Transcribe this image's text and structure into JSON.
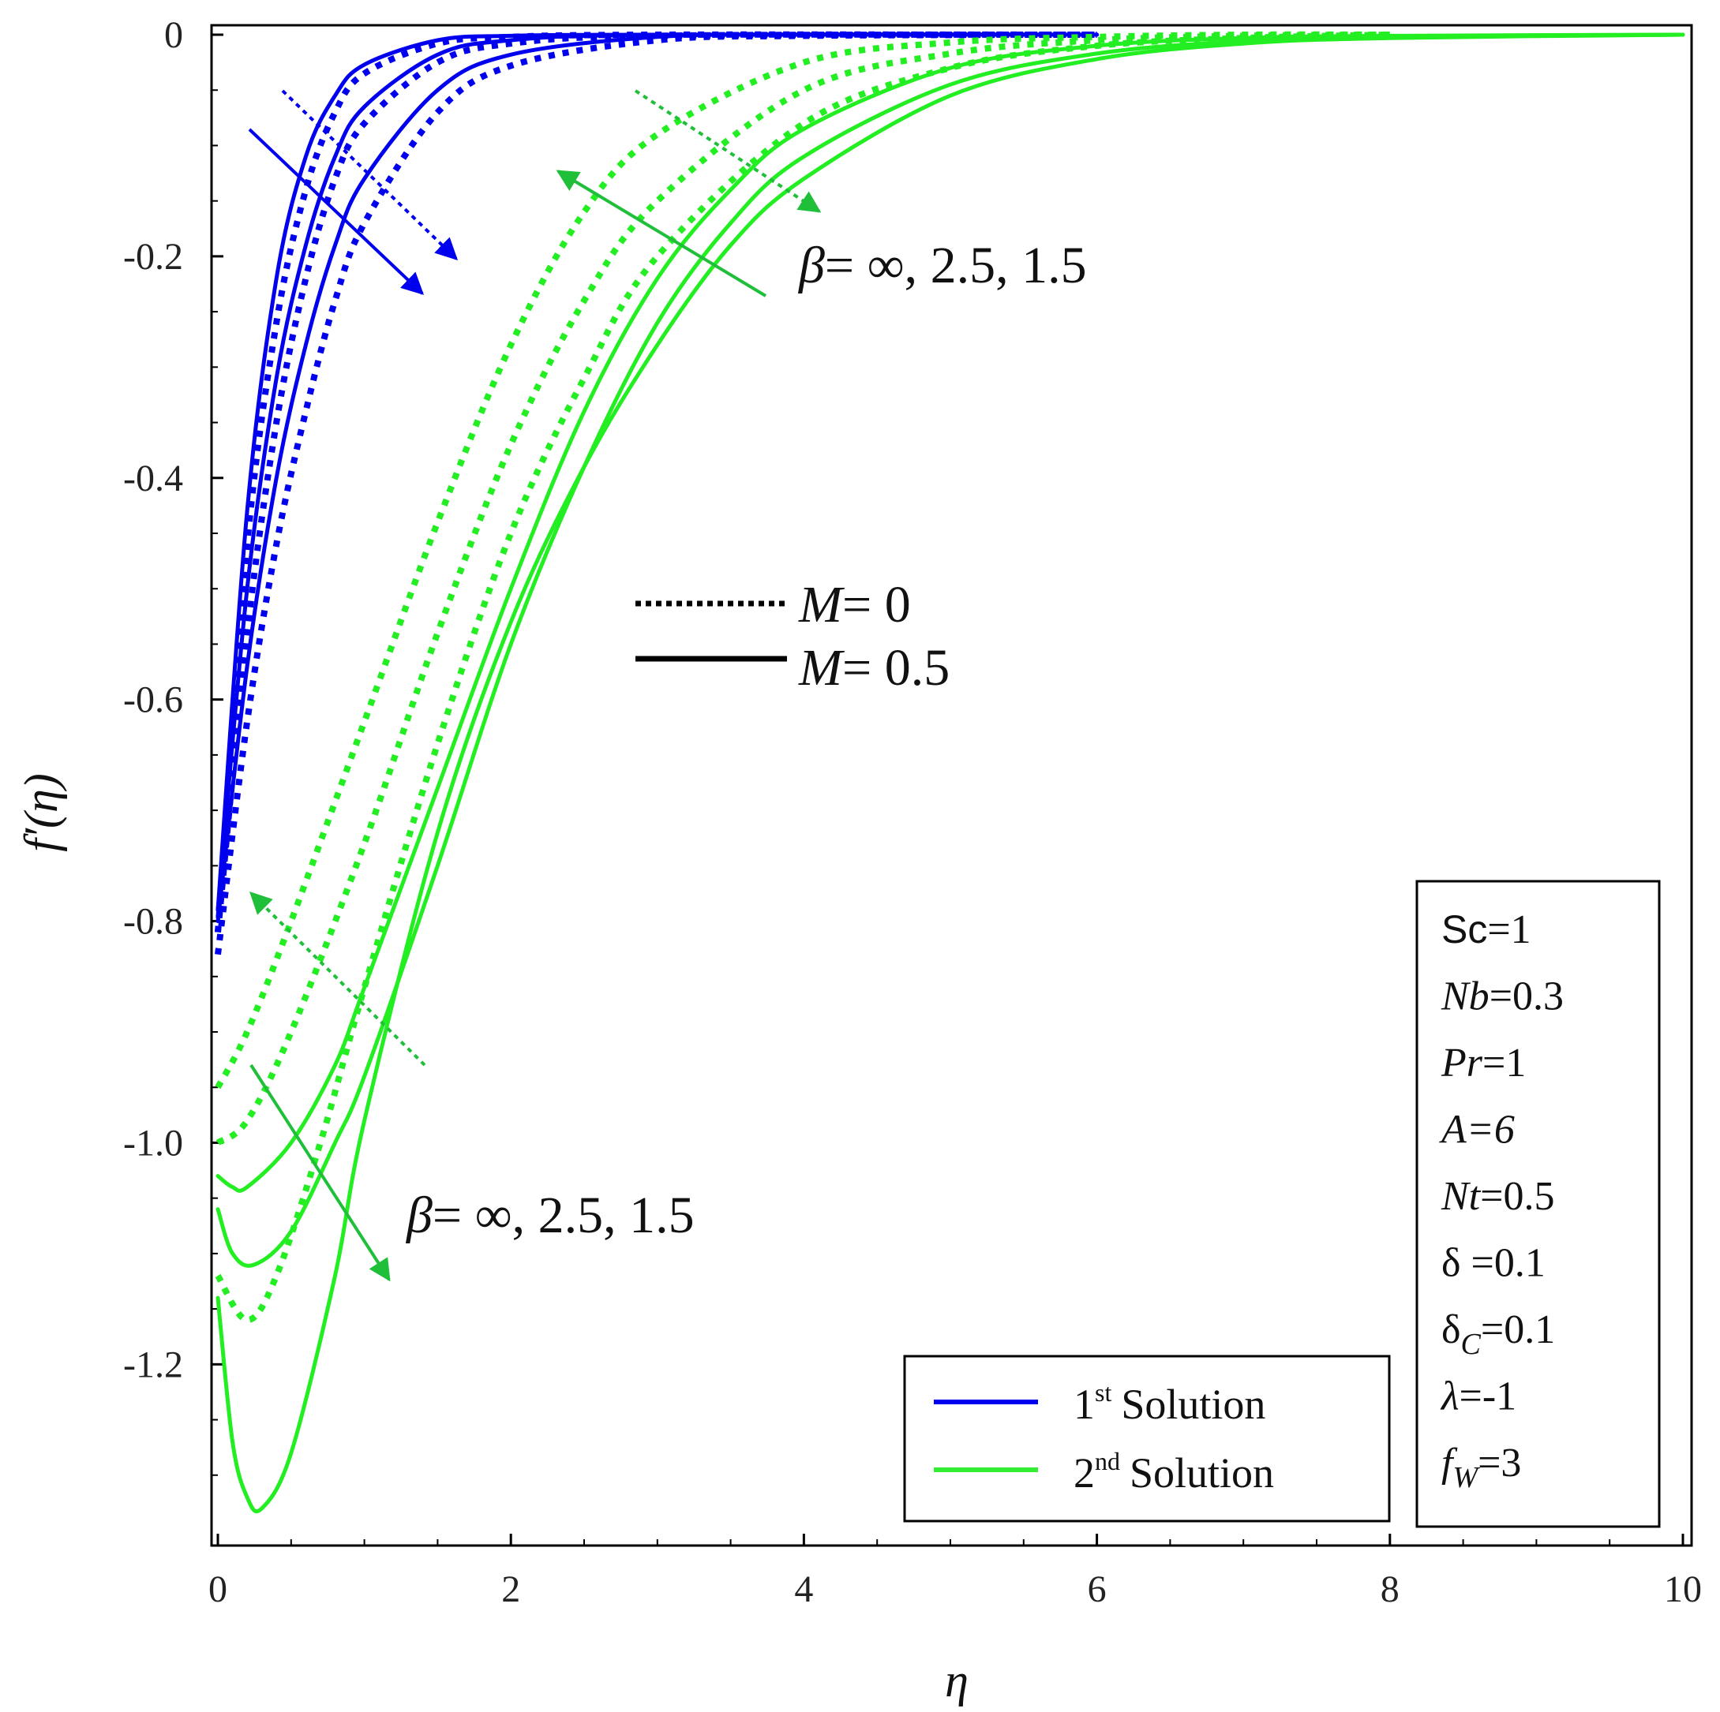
{
  "chart_data": {
    "type": "line",
    "xlabel": "η",
    "ylabel": "f′(η)",
    "xlim": [
      0,
      10
    ],
    "ylim": [
      -1.35,
      0
    ],
    "x_ticks": [
      "0",
      "2",
      "4",
      "6",
      "8",
      "10"
    ],
    "y_ticks": [
      "0",
      "-0.2",
      "-0.4",
      "-0.6",
      "-0.8",
      "-1.0",
      "-1.2"
    ],
    "series": [
      {
        "name": "1st Solution",
        "solution": 1,
        "M": 0,
        "beta": "∞",
        "color": "#0000ee",
        "dashed": true,
        "points": [
          [
            0,
            -0.81
          ],
          [
            0.2,
            -0.46
          ],
          [
            0.4,
            -0.26
          ],
          [
            0.6,
            -0.14
          ],
          [
            0.8,
            -0.07
          ],
          [
            1.0,
            -0.035
          ],
          [
            1.5,
            -0.008
          ],
          [
            2,
            -0.002
          ],
          [
            3,
            0
          ],
          [
            6,
            0
          ]
        ]
      },
      {
        "name": "1st Solution",
        "solution": 1,
        "M": 0,
        "beta": "2.5",
        "color": "#0000ee",
        "dashed": true,
        "points": [
          [
            0,
            -0.81
          ],
          [
            0.2,
            -0.54
          ],
          [
            0.4,
            -0.35
          ],
          [
            0.6,
            -0.22
          ],
          [
            0.8,
            -0.13
          ],
          [
            1.0,
            -0.08
          ],
          [
            1.5,
            -0.025
          ],
          [
            2,
            -0.008
          ],
          [
            3,
            -0.001
          ],
          [
            6,
            0
          ]
        ]
      },
      {
        "name": "1st Solution",
        "solution": 1,
        "M": 0,
        "beta": "1.5",
        "color": "#0000ee",
        "dashed": true,
        "points": [
          [
            0,
            -0.83
          ],
          [
            0.2,
            -0.62
          ],
          [
            0.4,
            -0.46
          ],
          [
            0.6,
            -0.34
          ],
          [
            0.8,
            -0.24
          ],
          [
            1.0,
            -0.17
          ],
          [
            1.5,
            -0.07
          ],
          [
            2,
            -0.028
          ],
          [
            3,
            -0.005
          ],
          [
            4,
            -0.001
          ],
          [
            6,
            0
          ]
        ]
      },
      {
        "name": "1st Solution",
        "solution": 1,
        "M": 0.5,
        "beta": "∞",
        "color": "#0000ee",
        "dashed": false,
        "points": [
          [
            0,
            -0.79
          ],
          [
            0.2,
            -0.43
          ],
          [
            0.4,
            -0.22
          ],
          [
            0.6,
            -0.11
          ],
          [
            0.8,
            -0.055
          ],
          [
            1.0,
            -0.027
          ],
          [
            1.5,
            -0.005
          ],
          [
            2,
            -0.001
          ],
          [
            3,
            0
          ],
          [
            6,
            0
          ]
        ]
      },
      {
        "name": "1st Solution",
        "solution": 1,
        "M": 0.5,
        "beta": "2.5",
        "color": "#0000ee",
        "dashed": false,
        "points": [
          [
            0,
            -0.79
          ],
          [
            0.2,
            -0.5
          ],
          [
            0.4,
            -0.31
          ],
          [
            0.6,
            -0.19
          ],
          [
            0.8,
            -0.11
          ],
          [
            1.0,
            -0.065
          ],
          [
            1.5,
            -0.018
          ],
          [
            2,
            -0.005
          ],
          [
            3,
            0
          ],
          [
            6,
            0
          ]
        ]
      },
      {
        "name": "1st Solution",
        "solution": 1,
        "M": 0.5,
        "beta": "1.5",
        "color": "#0000ee",
        "dashed": false,
        "points": [
          [
            0,
            -0.8
          ],
          [
            0.2,
            -0.57
          ],
          [
            0.4,
            -0.4
          ],
          [
            0.6,
            -0.28
          ],
          [
            0.8,
            -0.19
          ],
          [
            1.0,
            -0.13
          ],
          [
            1.5,
            -0.05
          ],
          [
            2,
            -0.018
          ],
          [
            3,
            -0.002
          ],
          [
            4,
            0
          ],
          [
            6,
            0
          ]
        ]
      },
      {
        "name": "2nd Solution",
        "solution": 2,
        "M": 0,
        "beta": "∞",
        "color": "#22ee22",
        "dashed": true,
        "points": [
          [
            0,
            -0.95
          ],
          [
            0.2,
            -0.9
          ],
          [
            0.5,
            -0.8
          ],
          [
            1,
            -0.62
          ],
          [
            1.5,
            -0.44
          ],
          [
            2,
            -0.28
          ],
          [
            2.5,
            -0.16
          ],
          [
            3,
            -0.09
          ],
          [
            4,
            -0.025
          ],
          [
            5,
            -0.007
          ],
          [
            6,
            -0.002
          ],
          [
            7,
            0
          ],
          [
            8,
            0
          ]
        ]
      },
      {
        "name": "2nd Solution",
        "solution": 2,
        "M": 0,
        "beta": "2.5",
        "color": "#22ee22",
        "dashed": true,
        "points": [
          [
            0,
            -1.0
          ],
          [
            0.2,
            -0.98
          ],
          [
            0.5,
            -0.9
          ],
          [
            1,
            -0.73
          ],
          [
            1.5,
            -0.54
          ],
          [
            2,
            -0.37
          ],
          [
            2.5,
            -0.24
          ],
          [
            3,
            -0.15
          ],
          [
            4,
            -0.05
          ],
          [
            5,
            -0.017
          ],
          [
            6,
            -0.005
          ],
          [
            7,
            -0.001
          ],
          [
            8,
            0
          ]
        ]
      },
      {
        "name": "2nd Solution",
        "solution": 2,
        "M": 0,
        "beta": "1.5",
        "color": "#22ee22",
        "dashed": true,
        "points": [
          [
            0,
            -1.12
          ],
          [
            0.2,
            -1.16
          ],
          [
            0.4,
            -1.12
          ],
          [
            0.7,
            -1.0
          ],
          [
            1,
            -0.86
          ],
          [
            1.5,
            -0.64
          ],
          [
            2,
            -0.45
          ],
          [
            2.5,
            -0.31
          ],
          [
            3,
            -0.2
          ],
          [
            4,
            -0.08
          ],
          [
            5,
            -0.03
          ],
          [
            6,
            -0.01
          ],
          [
            7,
            -0.003
          ],
          [
            8,
            0
          ]
        ]
      },
      {
        "name": "2nd Solution",
        "solution": 2,
        "M": 0.5,
        "beta": "∞",
        "color": "#22ee22",
        "dashed": false,
        "points": [
          [
            0,
            -1.03
          ],
          [
            0.1,
            -1.04
          ],
          [
            0.2,
            -1.04
          ],
          [
            0.5,
            -1.0
          ],
          [
            0.8,
            -0.93
          ],
          [
            1,
            -0.86
          ],
          [
            1.5,
            -0.68
          ],
          [
            2,
            -0.5
          ],
          [
            2.5,
            -0.34
          ],
          [
            3,
            -0.22
          ],
          [
            3.5,
            -0.14
          ],
          [
            4,
            -0.085
          ],
          [
            5,
            -0.03
          ],
          [
            6,
            -0.01
          ],
          [
            7,
            -0.003
          ],
          [
            8,
            -0.001
          ],
          [
            10,
            0
          ]
        ]
      },
      {
        "name": "2nd Solution",
        "solution": 2,
        "M": 0.5,
        "beta": "2.5",
        "color": "#22ee22",
        "dashed": false,
        "points": [
          [
            0,
            -1.06
          ],
          [
            0.1,
            -1.1
          ],
          [
            0.25,
            -1.11
          ],
          [
            0.5,
            -1.08
          ],
          [
            0.8,
            -1.0
          ],
          [
            1,
            -0.94
          ],
          [
            1.5,
            -0.75
          ],
          [
            2,
            -0.55
          ],
          [
            2.5,
            -0.39
          ],
          [
            3,
            -0.26
          ],
          [
            3.5,
            -0.17
          ],
          [
            4,
            -0.11
          ],
          [
            5,
            -0.045
          ],
          [
            6,
            -0.017
          ],
          [
            7,
            -0.006
          ],
          [
            8,
            -0.002
          ],
          [
            10,
            0
          ]
        ]
      },
      {
        "name": "2nd Solution",
        "solution": 2,
        "M": 0.5,
        "beta": "1.5",
        "color": "#22ee22",
        "dashed": false,
        "points": [
          [
            0,
            -1.14
          ],
          [
            0.1,
            -1.27
          ],
          [
            0.2,
            -1.32
          ],
          [
            0.3,
            -1.33
          ],
          [
            0.5,
            -1.28
          ],
          [
            0.8,
            -1.12
          ],
          [
            1,
            -0.98
          ],
          [
            1.5,
            -0.72
          ],
          [
            2,
            -0.53
          ],
          [
            2.5,
            -0.39
          ],
          [
            3,
            -0.28
          ],
          [
            3.5,
            -0.19
          ],
          [
            4,
            -0.13
          ],
          [
            5,
            -0.055
          ],
          [
            6,
            -0.022
          ],
          [
            7,
            -0.008
          ],
          [
            8,
            -0.003
          ],
          [
            10,
            0
          ]
        ]
      }
    ],
    "legend": [
      {
        "sup_base": "1",
        "sup": "st",
        "label": "Solution",
        "color": "#0000ee"
      },
      {
        "sup_base": "2",
        "sup": "nd",
        "label": "Solution",
        "color": "#22ee22"
      }
    ],
    "style_key": [
      {
        "lhs": "M",
        "rhs": "= 0",
        "dashed": true
      },
      {
        "lhs": "M",
        "rhs": "= 0.5",
        "dashed": false
      }
    ],
    "annotations": {
      "beta_top": {
        "lhs": "β",
        "rhs": "=  ∞, 2.5, 1.5"
      },
      "beta_bottom": {
        "lhs": "β",
        "rhs": "=  ∞, 2.5, 1.5"
      }
    },
    "params": [
      {
        "lhs": "Sc",
        "sub": "",
        "rhs": "=1",
        "italic": false
      },
      {
        "lhs": "Nb",
        "sub": "",
        "rhs": "=0.3",
        "italic": true
      },
      {
        "lhs": "Pr",
        "sub": "",
        "rhs": "=1",
        "italic": true
      },
      {
        "lhs": "A=6",
        "sub": "",
        "rhs": "",
        "italic": true
      },
      {
        "lhs": "Nt",
        "sub": "",
        "rhs": "=0.5",
        "italic": true
      },
      {
        "lhs": "δ",
        "sub": "",
        "rhs": " =0.1",
        "italic": false
      },
      {
        "lhs": "δ",
        "sub": "C",
        "rhs": "=0.1",
        "italic": false
      },
      {
        "lhs": "λ",
        "sub": "",
        "rhs": "=-1",
        "italic": true
      },
      {
        "lhs": "f",
        "sub": "W",
        "rhs": "=3",
        "italic": true
      }
    ],
    "grid": false
  }
}
